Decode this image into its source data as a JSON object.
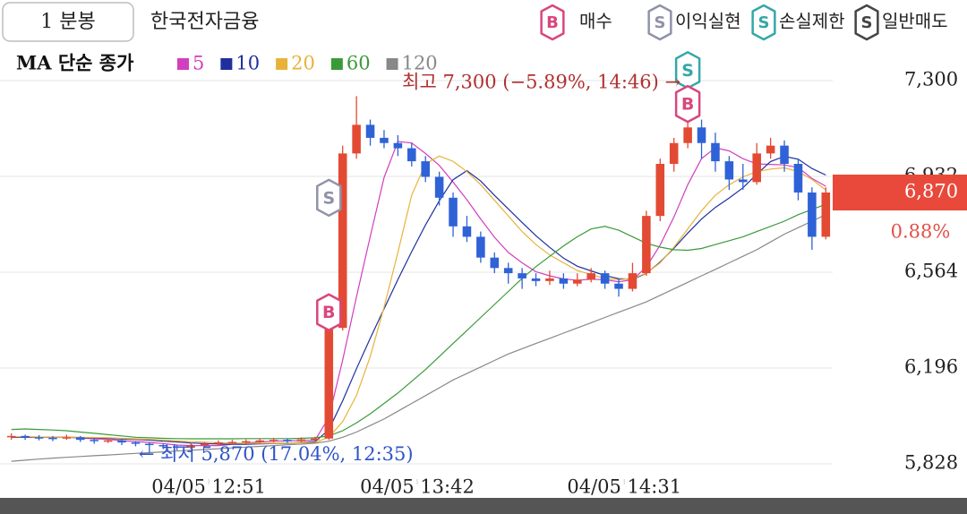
{
  "chart_data": {
    "type": "candlestick",
    "interval": "1 분봉",
    "title": "한국전자금융",
    "ma_label": "MA 단순 종가",
    "signal_legend": [
      {
        "badge": "B",
        "label": "매수",
        "color": "#d9467d"
      },
      {
        "badge": "S",
        "label": "이익실현",
        "color": "#8f93a8"
      },
      {
        "badge": "S",
        "label": "손실제한",
        "color": "#35a7a7"
      },
      {
        "badge": "S",
        "label": "일반매도",
        "color": "#444444"
      }
    ],
    "categories": [
      null,
      null,
      null,
      null,
      null,
      null,
      null,
      null,
      null,
      null,
      null,
      null,
      null,
      null,
      null,
      null,
      null,
      null,
      null,
      null,
      null,
      null,
      null,
      null,
      null,
      null,
      null,
      null,
      null,
      null,
      null,
      null,
      null,
      null,
      null,
      null,
      null,
      null,
      null,
      null,
      null,
      null,
      null,
      null,
      null,
      null,
      null,
      null,
      null,
      null,
      null,
      null,
      null,
      null,
      null,
      null,
      null,
      null,
      null,
      null
    ],
    "open": [
      5930,
      5935,
      5930,
      5928,
      5925,
      5930,
      5920,
      5915,
      5918,
      5910,
      5905,
      5900,
      5895,
      5890,
      5900,
      5905,
      5910,
      5912,
      5915,
      5918,
      5920,
      5915,
      5922,
      5925,
      6350,
      7020,
      7130,
      7080,
      7060,
      7040,
      6990,
      6930,
      6850,
      6740,
      6700,
      6620,
      6580,
      6560,
      6540,
      6530,
      6540,
      6520,
      6535,
      6560,
      6520,
      6500,
      6560,
      6780,
      6980,
      7060,
      7120,
      7060,
      6990,
      6920,
      6910,
      7020,
      7050,
      6980,
      6870,
      6700
    ],
    "high": [
      5945,
      5940,
      5938,
      5935,
      5940,
      5935,
      5925,
      5925,
      5922,
      5915,
      5910,
      5905,
      5900,
      5908,
      5912,
      5918,
      5920,
      5922,
      5925,
      5928,
      5926,
      5930,
      5932,
      6380,
      7050,
      7240,
      7150,
      7110,
      7090,
      7060,
      7010,
      6950,
      6870,
      6780,
      6720,
      6640,
      6600,
      6580,
      6560,
      6570,
      6560,
      6560,
      6580,
      6570,
      6540,
      6600,
      6800,
      7000,
      7080,
      7300,
      7150,
      7100,
      7010,
      6980,
      7060,
      7080,
      7070,
      7000,
      6890,
      6890
    ],
    "low": [
      5920,
      5920,
      5918,
      5915,
      5920,
      5912,
      5905,
      5908,
      5900,
      5895,
      5870,
      5885,
      5880,
      5885,
      5895,
      5898,
      5902,
      5905,
      5908,
      5910,
      5908,
      5910,
      5915,
      5920,
      6340,
      7000,
      7050,
      7040,
      7010,
      6970,
      6910,
      6820,
      6700,
      6680,
      6600,
      6560,
      6520,
      6500,
      6510,
      6515,
      6500,
      6510,
      6525,
      6500,
      6470,
      6490,
      6550,
      6760,
      6950,
      7040,
      7000,
      6950,
      6880,
      6880,
      6900,
      7000,
      6950,
      6840,
      6650,
      6690
    ],
    "close": [
      5935,
      5930,
      5928,
      5925,
      5930,
      5920,
      5915,
      5918,
      5910,
      5905,
      5900,
      5895,
      5890,
      5900,
      5905,
      5910,
      5912,
      5915,
      5918,
      5920,
      5915,
      5922,
      5925,
      6350,
      7020,
      7130,
      7080,
      7060,
      7040,
      6990,
      6930,
      6850,
      6740,
      6700,
      6620,
      6580,
      6560,
      6540,
      6530,
      6540,
      6520,
      6535,
      6560,
      6520,
      6500,
      6560,
      6780,
      6980,
      7060,
      7120,
      7060,
      6990,
      6920,
      6910,
      7020,
      7050,
      6980,
      6870,
      6700,
      6870
    ],
    "up_color": "#e34a33",
    "down_color": "#2f62d6",
    "series": [
      {
        "name": "5",
        "color": "#d13fbf",
        "values": [
          5930,
          5930,
          5930,
          5929,
          5930,
          5927,
          5924,
          5922,
          5917,
          5914,
          5910,
          5906,
          5900,
          5898,
          5898,
          5898,
          5903,
          5908,
          5912,
          5915,
          5916,
          5918,
          5919,
          6006,
          6226,
          6469,
          6701,
          6928,
          7066,
          7060,
          7020,
          6974,
          6910,
          6842,
          6768,
          6698,
          6640,
          6600,
          6566,
          6550,
          6538,
          6533,
          6537,
          6535,
          6527,
          6535,
          6584,
          6668,
          6776,
          6900,
          7000,
          7042,
          7030,
          7000,
          6980,
          6978,
          6976,
          6966,
          6924,
          6894
        ]
      },
      {
        "name": "10",
        "color": "#1f2f9e",
        "values": [
          5930,
          5930,
          5930,
          5930,
          5930,
          5929,
          5927,
          5926,
          5923,
          5922,
          5919,
          5915,
          5912,
          5908,
          5906,
          5904,
          5903,
          5903,
          5905,
          5906,
          5907,
          5910,
          5913,
          5959,
          6070,
          6193,
          6310,
          6424,
          6536,
          6643,
          6745,
          6838,
          6919,
          6954,
          6914,
          6859,
          6807,
          6755,
          6704,
          6659,
          6618,
          6587,
          6569,
          6551,
          6539,
          6537,
          6559,
          6603,
          6656,
          6714,
          6768,
          6813,
          6849,
          6888,
          6940,
          6989,
          7009,
          6998,
          6962,
          6937
        ]
      },
      {
        "name": "20",
        "color": "#e8b23a",
        "values": [
          5932,
          5932,
          5931,
          5930,
          5930,
          5930,
          5929,
          5928,
          5926,
          5924,
          5922,
          5919,
          5916,
          5913,
          5911,
          5909,
          5908,
          5907,
          5907,
          5907,
          5908,
          5909,
          5910,
          5930,
          5990,
          6090,
          6240,
          6430,
          6640,
          6860,
          6980,
          7010,
          6990,
          6950,
          6900,
          6840,
          6780,
          6720,
          6670,
          6630,
          6600,
          6570,
          6555,
          6540,
          6535,
          6540,
          6560,
          6600,
          6660,
          6730,
          6800,
          6860,
          6900,
          6930,
          6950,
          6960,
          6965,
          6950,
          6920,
          6880
        ]
      },
      {
        "name": "60",
        "color": "#3a9a3a",
        "values": [
          5960,
          5962,
          5960,
          5958,
          5955,
          5950,
          5945,
          5940,
          5935,
          5930,
          5928,
          5926,
          5925,
          5924,
          5924,
          5924,
          5924,
          5925,
          5925,
          5925,
          5925,
          5926,
          5928,
          5935,
          5955,
          5985,
          6020,
          6060,
          6100,
          6145,
          6190,
          6240,
          6290,
          6340,
          6390,
          6440,
          6490,
          6540,
          6585,
          6625,
          6665,
          6700,
          6730,
          6740,
          6725,
          6700,
          6675,
          6660,
          6650,
          6648,
          6655,
          6670,
          6685,
          6700,
          6720,
          6740,
          6760,
          6785,
          6805,
          6825
        ]
      },
      {
        "name": "120",
        "color": "#888888",
        "values": [
          5838,
          5842,
          5846,
          5850,
          5853,
          5856,
          5859,
          5862,
          5865,
          5868,
          5871,
          5874,
          5877,
          5880,
          5883,
          5886,
          5889,
          5892,
          5895,
          5898,
          5901,
          5904,
          5907,
          5915,
          5930,
          5950,
          5975,
          6000,
          6030,
          6060,
          6090,
          6120,
          6150,
          6175,
          6200,
          6225,
          6250,
          6270,
          6290,
          6310,
          6330,
          6350,
          6370,
          6390,
          6410,
          6430,
          6450,
          6475,
          6500,
          6525,
          6550,
          6575,
          6600,
          6625,
          6650,
          6680,
          6710,
          6735,
          6760,
          6785
        ]
      }
    ],
    "xlim": [
      -0.5,
      59.5
    ],
    "xticks": [
      {
        "value": 14.3,
        "label": "04/05 12:51"
      },
      {
        "value": 29.4,
        "label": "04/05 13:42"
      },
      {
        "value": 44.4,
        "label": "04/05 14:31"
      }
    ],
    "ylim": [
      5735,
      7403
    ],
    "yticks": [
      {
        "value": 7300,
        "label": "7,300"
      },
      {
        "value": 6932,
        "label": "6,932"
      },
      {
        "value": 6564,
        "label": "6,564"
      },
      {
        "value": 6196,
        "label": "6,196"
      },
      {
        "value": 5828,
        "label": "5,828"
      }
    ],
    "grid": true,
    "last": {
      "value": 6870,
      "label": "6,870"
    },
    "change": {
      "value": 0.88,
      "label": "0.88%"
    },
    "annotations": [
      {
        "text": "최고 7,300 (−5.89%, 14:46) →",
        "x": 49,
        "y": 7300,
        "color": "#b03030",
        "side": "left"
      },
      {
        "text": "← 최저 5,870 (17.04%, 12:35)",
        "x": 10,
        "y": 5870,
        "color": "#2f55c8",
        "side": "right"
      }
    ],
    "signals": [
      {
        "badge": "S",
        "x": 23,
        "y": 6850,
        "color": "#8f93a8"
      },
      {
        "badge": "B",
        "x": 23,
        "y": 6410,
        "color": "#d9467d"
      },
      {
        "badge": "S",
        "x": 49,
        "y": 7340,
        "color": "#35a7a7"
      },
      {
        "badge": "B",
        "x": 49,
        "y": 7210,
        "color": "#d9467d"
      }
    ]
  }
}
